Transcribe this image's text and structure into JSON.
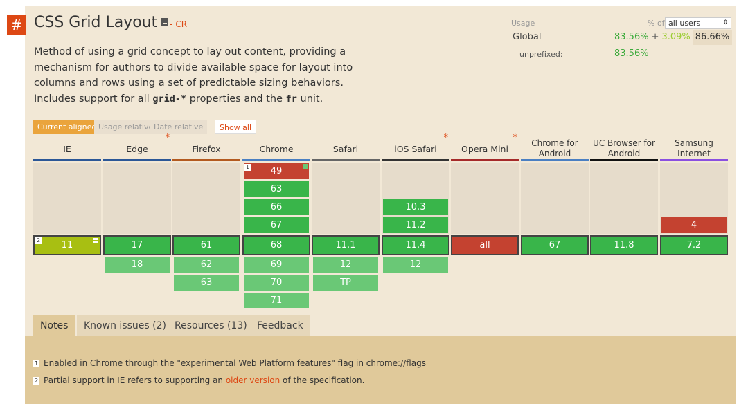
{
  "feature": {
    "hash": "#",
    "title": "CSS Grid Layout",
    "spec_icon": "document-icon",
    "status": "- CR",
    "desc_1": "Method of using a grid concept to lay out content, providing a mechanism for authors to divide available space for layout into columns and rows using a set of predictable sizing behaviors. Includes support for all ",
    "desc_code_1": "grid-*",
    "desc_2": " properties and the ",
    "desc_code_2": "fr",
    "desc_3": " unit."
  },
  "usage": {
    "label": "Usage",
    "pct_of": "% of",
    "select_value": "all users",
    "global_label": "Global",
    "full": "83.56%",
    "plus": "+",
    "partial": "3.09%",
    "equals": "=",
    "total": "86.66%",
    "unprefixed_label": "unprefixed:",
    "unprefixed": "83.56%"
  },
  "view_tabs": {
    "current": "Current aligned",
    "usage": "Usage relative",
    "date": "Date relative",
    "show_all": "Show all"
  },
  "browsers": [
    {
      "name": "IE",
      "bar": "#2b5797"
    },
    {
      "name": "Edge",
      "bar": "#2b5797",
      "star": "*"
    },
    {
      "name": "Firefox",
      "bar": "#b35a1f"
    },
    {
      "name": "Chrome",
      "bar": "#4a7fc2"
    },
    {
      "name": "Safari",
      "bar": "#666666"
    },
    {
      "name": "iOS Safari",
      "bar": "#333333",
      "star": "*"
    },
    {
      "name": "Opera Mini",
      "bar": "#a52a2a",
      "star": "*"
    },
    {
      "name": "Chrome for Android",
      "bar": "#4a7fc2"
    },
    {
      "name": "UC Browser for Android",
      "bar": "#111111"
    },
    {
      "name": "Samsung Internet",
      "bar": "#8a4fe0"
    }
  ],
  "cells": {
    "chrome_49": "49",
    "chrome_63": "63",
    "chrome_66": "66",
    "chrome_67": "67",
    "ios_103": "10.3",
    "ios_112": "11.2",
    "samsung_4": "4",
    "cur_ie": "11",
    "cur_edge": "17",
    "cur_firefox": "61",
    "cur_chrome": "68",
    "cur_safari": "11.1",
    "cur_ios": "11.4",
    "cur_opmini": "all",
    "cur_chromeand": "67",
    "cur_uc": "11.8",
    "cur_samsung": "7.2",
    "edge_18": "18",
    "ff_62": "62",
    "ff_63": "63",
    "chrome_69": "69",
    "chrome_70": "70",
    "chrome_71": "71",
    "safari_12": "12",
    "safari_tp": "TP",
    "ios_12": "12",
    "note_1": "1",
    "note_2": "2"
  },
  "notes_tabs": [
    "Notes",
    "Known issues (2)",
    "Resources (13)",
    "Feedback"
  ],
  "notes": {
    "n1_num": "1",
    "n1_text": "Enabled in Chrome through the \"experimental Web Platform features\" flag in chrome://flags",
    "n2_num": "2",
    "n2_a": "Partial support in IE refers to supporting an ",
    "n2_link": "older version",
    "n2_b": " of the specification."
  },
  "colors": {
    "accent": "#dd4814",
    "supported": "#39b54a",
    "supported_future": "#6ac876",
    "unsupported": "#c44230",
    "partial": "#a8bf12"
  }
}
